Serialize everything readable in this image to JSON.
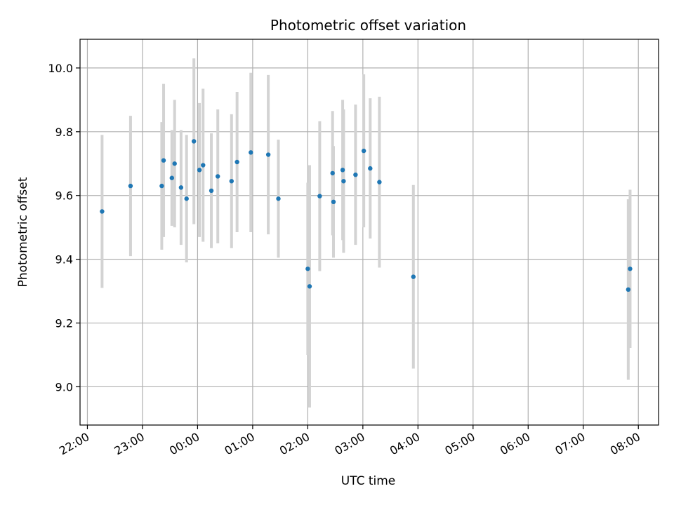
{
  "chart_data": {
    "type": "scatter",
    "title": "Photometric offset variation",
    "xlabel": "UTC time",
    "ylabel": "Photometric offset",
    "grid": true,
    "legend": "none",
    "xlim": [
      "21:52",
      "08:22"
    ],
    "ylim": [
      8.88,
      10.09
    ],
    "x_ticks": [
      "22:00",
      "23:00",
      "00:00",
      "01:00",
      "02:00",
      "03:00",
      "04:00",
      "05:00",
      "06:00",
      "07:00",
      "08:00"
    ],
    "y_ticks": [
      9.0,
      9.2,
      9.4,
      9.6,
      9.8,
      10.0
    ],
    "colors": {
      "marker": "#1f77b4",
      "errorbar": "#d3d3d3",
      "grid": "#b0b0b0"
    },
    "series": [
      {
        "points": [
          {
            "x": "22:16",
            "y": 9.55,
            "yerr": 0.24
          },
          {
            "x": "22:47",
            "y": 9.63,
            "yerr": 0.22
          },
          {
            "x": "23:21",
            "y": 9.63,
            "yerr": 0.2
          },
          {
            "x": "23:23",
            "y": 9.71,
            "yerr": 0.24
          },
          {
            "x": "23:32",
            "y": 9.655,
            "yerr": 0.15
          },
          {
            "x": "23:35",
            "y": 9.7,
            "yerr": 0.2
          },
          {
            "x": "23:42",
            "y": 9.625,
            "yerr": 0.18
          },
          {
            "x": "23:48",
            "y": 9.59,
            "yerr": 0.2
          },
          {
            "x": "23:56",
            "y": 9.77,
            "yerr": 0.26
          },
          {
            "x": "00:02",
            "y": 9.68,
            "yerr": 0.21
          },
          {
            "x": "00:06",
            "y": 9.695,
            "yerr": 0.24
          },
          {
            "x": "00:15",
            "y": 9.615,
            "yerr": 0.18
          },
          {
            "x": "00:22",
            "y": 9.66,
            "yerr": 0.21
          },
          {
            "x": "00:37",
            "y": 9.645,
            "yerr": 0.21
          },
          {
            "x": "00:43",
            "y": 9.705,
            "yerr": 0.22
          },
          {
            "x": "00:58",
            "y": 9.735,
            "yerr": 0.25
          },
          {
            "x": "01:17",
            "y": 9.728,
            "yerr": 0.25
          },
          {
            "x": "01:28",
            "y": 9.59,
            "yerr": 0.185
          },
          {
            "x": "02:00",
            "y": 9.37,
            "yerr": 0.27
          },
          {
            "x": "02:02",
            "y": 9.315,
            "yerr": 0.38
          },
          {
            "x": "02:13",
            "y": 9.598,
            "yerr": 0.235
          },
          {
            "x": "02:27",
            "y": 9.67,
            "yerr": 0.195
          },
          {
            "x": "02:28",
            "y": 9.58,
            "yerr": 0.175
          },
          {
            "x": "02:38",
            "y": 9.68,
            "yerr": 0.22
          },
          {
            "x": "02:39",
            "y": 9.645,
            "yerr": 0.225
          },
          {
            "x": "02:52",
            "y": 9.665,
            "yerr": 0.22
          },
          {
            "x": "03:01",
            "y": 9.74,
            "yerr": 0.24
          },
          {
            "x": "03:08",
            "y": 9.685,
            "yerr": 0.22
          },
          {
            "x": "03:18",
            "y": 9.642,
            "yerr": 0.268
          },
          {
            "x": "03:55",
            "y": 9.345,
            "yerr": 0.288
          },
          {
            "x": "07:49",
            "y": 9.305,
            "yerr": 0.283
          },
          {
            "x": "07:51",
            "y": 9.37,
            "yerr": 0.248
          }
        ]
      }
    ]
  }
}
